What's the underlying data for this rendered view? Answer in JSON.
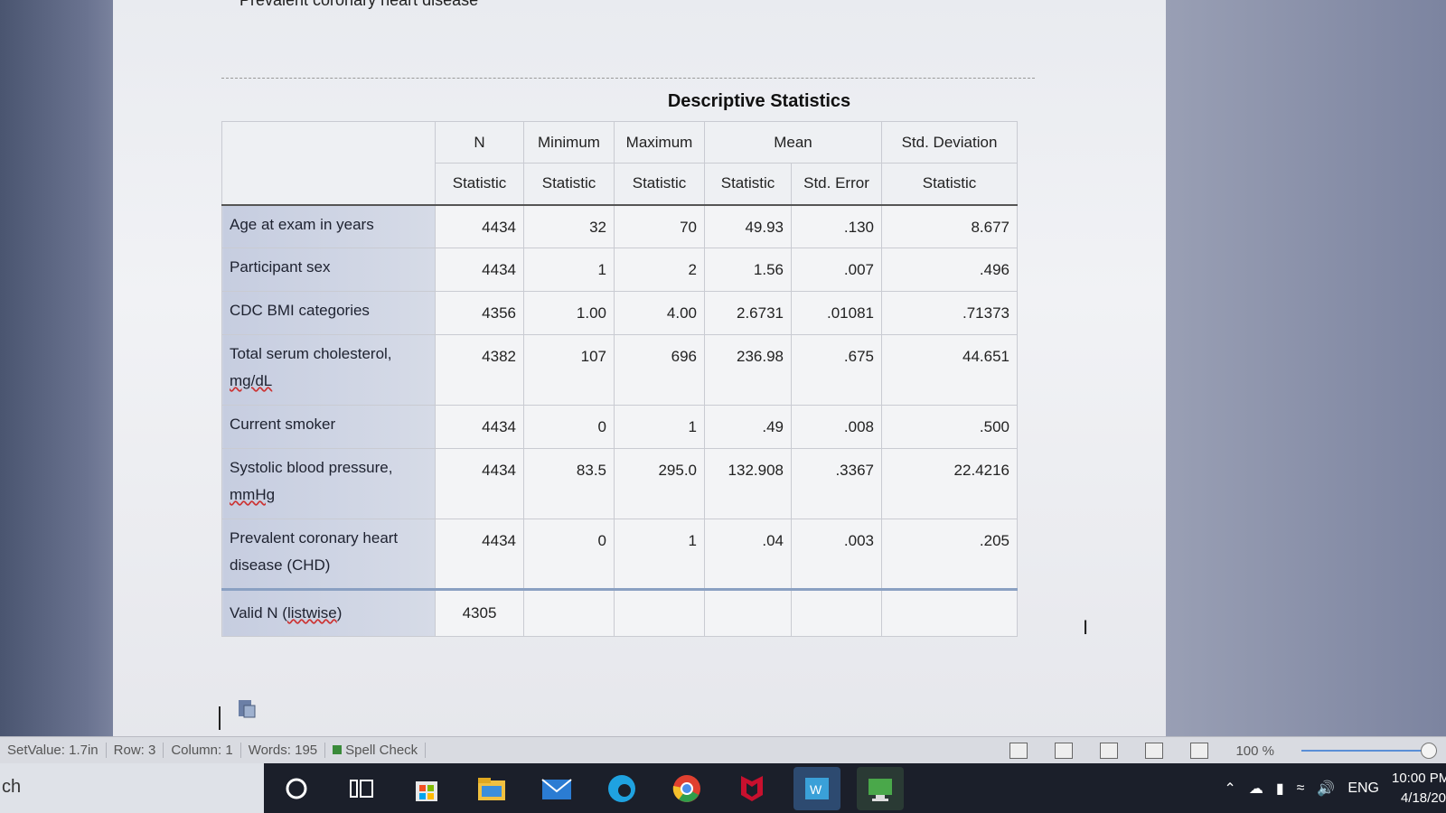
{
  "document": {
    "heading": "Prevalent coronary heart disease",
    "table": {
      "title": "Descriptive Statistics",
      "group_headers": [
        "N",
        "Minimum",
        "Maximum",
        "Mean",
        "Std. Deviation"
      ],
      "sub_headers": [
        "Statistic",
        "Statistic",
        "Statistic",
        "Statistic",
        "Std. Error",
        "Statistic"
      ],
      "rows": [
        {
          "label": "Age at exam in years",
          "values": [
            "4434",
            "32",
            "70",
            "49.93",
            ".130",
            "8.677"
          ]
        },
        {
          "label": "Participant sex",
          "values": [
            "4434",
            "1",
            "2",
            "1.56",
            ".007",
            ".496"
          ]
        },
        {
          "label": "CDC BMI categories",
          "values": [
            "4356",
            "1.00",
            "4.00",
            "2.6731",
            ".01081",
            ".71373"
          ]
        },
        {
          "label_line1": "Total serum cholesterol,",
          "label_line2": "mg/dL",
          "values": [
            "4382",
            "107",
            "696",
            "236.98",
            ".675",
            "44.651"
          ]
        },
        {
          "label": "Current smoker",
          "values": [
            "4434",
            "0",
            "1",
            ".49",
            ".008",
            ".500"
          ]
        },
        {
          "label_line1": "Systolic blood pressure,",
          "label_line2": "mmHg",
          "values": [
            "4434",
            "83.5",
            "295.0",
            "132.908",
            ".3367",
            "22.4216"
          ]
        },
        {
          "label_line1": "Prevalent coronary heart",
          "label_line2": "disease (CHD)",
          "values": [
            "4434",
            "0",
            "1",
            ".04",
            ".003",
            ".205"
          ]
        }
      ],
      "valid": {
        "label_pre": "Valid N (",
        "label_spell": "listwise",
        "label_post": ")",
        "n": "4305"
      }
    }
  },
  "statusbar": {
    "setvalue": "SetValue: 1.7in",
    "row": "Row: 3",
    "column": "Column: 1",
    "words": "Words: 195",
    "spell": "Spell Check",
    "zoom": "100 %"
  },
  "taskbar": {
    "search_text": "ch",
    "tray_lang": "ENG",
    "time": "10:00 PM",
    "date": "4/18/20"
  },
  "icons": [
    "search-circle-icon",
    "task-view-icon",
    "store-icon",
    "file-explorer-icon",
    "mail-icon",
    "edge-icon",
    "chrome-icon",
    "mcafee-icon",
    "word-icon",
    "app-icon"
  ]
}
